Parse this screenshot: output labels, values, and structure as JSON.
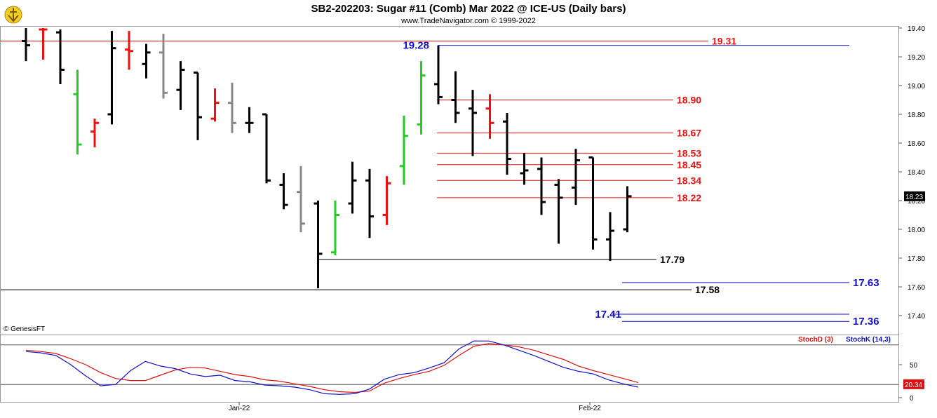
{
  "header": {
    "title": "SB2-202203:  Sugar #11 (Comb) Mar 2022 @ ICE-US  (Daily bars)",
    "subtitle": "www.TradeNavigator.com © 1999-2022"
  },
  "watermark": "© GenesisFT",
  "colors": {
    "up_bar": "#22cc22",
    "down_bar": "#ee1111",
    "neutral_bar": "#000000",
    "gray_bar": "#888888",
    "red_level": "#ee1111",
    "blue_level": "#1111cc",
    "black_level": "#000000",
    "stoch_d": "#dd1111",
    "stoch_k": "#1111cc"
  },
  "chart_data": [
    {
      "type": "ohlc",
      "ylim": [
        17.2,
        19.5
      ],
      "yticks": [
        "19.40",
        "19.20",
        "19.00",
        "18.80",
        "18.60",
        "18.40",
        "18.20",
        "18.00",
        "17.80",
        "17.60",
        "17.40"
      ],
      "last_price": "18.23",
      "x_labels": [
        "Jan-22",
        "Feb-22"
      ],
      "bars": [
        {
          "o": 19.31,
          "h": 19.4,
          "l": 19.17,
          "c": 19.28,
          "color": "black"
        },
        {
          "o": 19.39,
          "h": 19.4,
          "l": 19.18,
          "c": 19.39,
          "color": "red"
        },
        {
          "o": 19.37,
          "h": 19.39,
          "l": 19.01,
          "c": 19.11,
          "color": "black"
        },
        {
          "o": 18.94,
          "h": 19.11,
          "l": 18.52,
          "c": 18.59,
          "color": "green"
        },
        {
          "o": 18.68,
          "h": 18.77,
          "l": 18.57,
          "c": 18.74,
          "color": "red"
        },
        {
          "o": 18.8,
          "h": 19.38,
          "l": 18.73,
          "c": 19.26,
          "color": "black"
        },
        {
          "o": 19.25,
          "h": 19.38,
          "l": 19.11,
          "c": 19.24,
          "color": "red"
        },
        {
          "o": 19.15,
          "h": 19.29,
          "l": 19.05,
          "c": 19.23,
          "color": "black"
        },
        {
          "o": 19.23,
          "h": 19.36,
          "l": 18.91,
          "c": 18.95,
          "color": "gray"
        },
        {
          "o": 18.97,
          "h": 19.17,
          "l": 18.83,
          "c": 19.11,
          "color": "black"
        },
        {
          "o": 19.09,
          "h": 19.09,
          "l": 18.62,
          "c": 18.78,
          "color": "black"
        },
        {
          "o": 18.77,
          "h": 18.98,
          "l": 18.75,
          "c": 18.88,
          "color": "red"
        },
        {
          "o": 18.88,
          "h": 19.02,
          "l": 18.67,
          "c": 18.74,
          "color": "gray"
        },
        {
          "o": 18.74,
          "h": 18.85,
          "l": 18.67,
          "c": 18.74,
          "color": "black"
        },
        {
          "o": 18.8,
          "h": 18.8,
          "l": 18.32,
          "c": 18.34,
          "color": "black"
        },
        {
          "o": 18.31,
          "h": 18.39,
          "l": 18.14,
          "c": 18.17,
          "color": "black"
        },
        {
          "o": 18.26,
          "h": 18.44,
          "l": 17.98,
          "c": 18.04,
          "color": "gray"
        },
        {
          "o": 18.18,
          "h": 18.2,
          "l": 17.59,
          "c": 17.83,
          "color": "black"
        },
        {
          "o": 17.84,
          "h": 18.2,
          "l": 17.82,
          "c": 18.1,
          "color": "green"
        },
        {
          "o": 18.18,
          "h": 18.47,
          "l": 18.11,
          "c": 18.34,
          "color": "black"
        },
        {
          "o": 18.34,
          "h": 18.42,
          "l": 17.94,
          "c": 18.09,
          "color": "black"
        },
        {
          "o": 18.1,
          "h": 18.37,
          "l": 18.03,
          "c": 18.32,
          "color": "red"
        },
        {
          "o": 18.44,
          "h": 18.79,
          "l": 18.31,
          "c": 18.65,
          "color": "green"
        },
        {
          "o": 18.73,
          "h": 19.17,
          "l": 18.66,
          "c": 19.07,
          "color": "green"
        },
        {
          "o": 19.01,
          "h": 19.28,
          "l": 18.87,
          "c": 18.92,
          "color": "black"
        },
        {
          "o": 18.9,
          "h": 19.1,
          "l": 18.74,
          "c": 18.81,
          "color": "black"
        },
        {
          "o": 18.84,
          "h": 18.97,
          "l": 18.51,
          "c": 18.81,
          "color": "black"
        },
        {
          "o": 18.84,
          "h": 18.94,
          "l": 18.63,
          "c": 18.74,
          "color": "red"
        },
        {
          "o": 18.75,
          "h": 18.81,
          "l": 18.38,
          "c": 18.49,
          "color": "black"
        },
        {
          "o": 18.39,
          "h": 18.53,
          "l": 18.31,
          "c": 18.41,
          "color": "black"
        },
        {
          "o": 18.42,
          "h": 18.5,
          "l": 18.1,
          "c": 18.19,
          "color": "black"
        },
        {
          "o": 18.31,
          "h": 18.35,
          "l": 17.9,
          "c": 18.22,
          "color": "black"
        },
        {
          "o": 18.29,
          "h": 18.56,
          "l": 18.17,
          "c": 18.48,
          "color": "black"
        },
        {
          "o": 18.5,
          "h": 18.5,
          "l": 17.86,
          "c": 17.93,
          "color": "black"
        },
        {
          "o": 17.93,
          "h": 18.12,
          "l": 17.78,
          "c": 17.99,
          "color": "black"
        },
        {
          "o": 18.0,
          "h": 18.3,
          "l": 17.98,
          "c": 18.23,
          "color": "black"
        }
      ]
    },
    {
      "type": "line",
      "ylim": [
        0,
        100
      ],
      "yticks": [
        "50",
        "0"
      ],
      "reference_lines": [
        80,
        20
      ],
      "last_value": "20.34",
      "series": [
        {
          "name": "StochD (3)",
          "color_key": "stoch_d",
          "values": [
            72,
            70,
            67,
            59,
            50,
            38,
            29,
            26,
            26,
            34,
            42,
            46,
            45,
            40,
            35,
            32,
            27,
            25,
            21,
            17,
            12,
            9,
            8,
            10,
            22,
            29,
            35,
            40,
            49,
            64,
            78,
            82,
            80,
            77,
            72,
            65,
            58,
            48,
            41,
            35,
            29,
            23
          ]
        },
        {
          "name": "StochK (14,3)",
          "color_key": "stoch_k",
          "values": [
            70,
            68,
            64,
            50,
            33,
            18,
            20,
            41,
            55,
            48,
            44,
            36,
            32,
            34,
            26,
            24,
            19,
            18,
            16,
            12,
            6,
            5,
            6,
            13,
            28,
            35,
            38,
            45,
            53,
            74,
            86,
            86,
            80,
            72,
            64,
            55,
            46,
            40,
            36,
            27,
            21,
            16
          ]
        }
      ]
    }
  ],
  "levels": {
    "red": [
      "19.31",
      "18.90",
      "18.67",
      "18.53",
      "18.45",
      "18.34",
      "18.22"
    ],
    "blue": [
      "19.28",
      "17.63",
      "17.41",
      "17.36"
    ],
    "black": [
      "17.79",
      "17.58"
    ]
  }
}
